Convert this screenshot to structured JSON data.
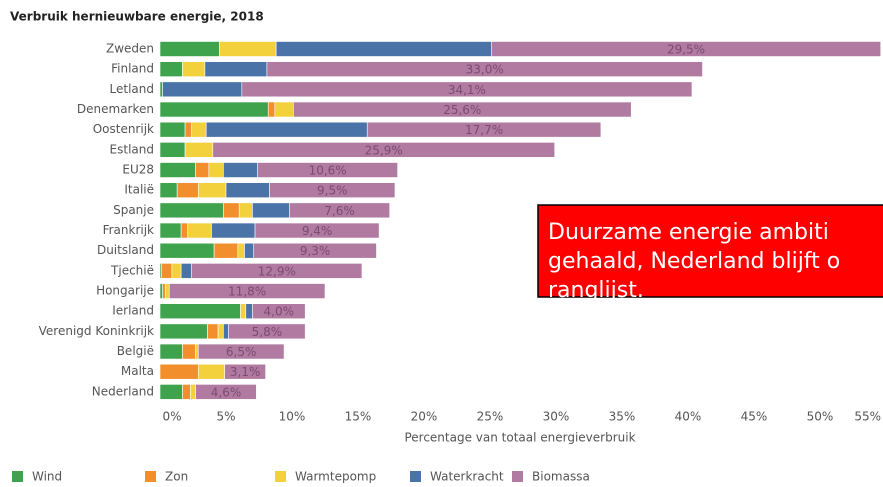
{
  "chart_data": {
    "type": "stacked_barh",
    "title": "Verbruik hernieuwbare energie, 2018",
    "x_label": "Percentage van totaal energieverbruik",
    "categories": [
      "Zweden",
      "Finland",
      "Letland",
      "Denemarken",
      "Oostenrijk",
      "Estland",
      "EU28",
      "Italië",
      "Spanje",
      "Frankrijk",
      "Duitsland",
      "Tjechië",
      "Hongarije",
      "Ierland",
      "Verenigd Koninkrijk",
      "België",
      "Malta",
      "Nederland"
    ],
    "series": [
      {
        "name": "Wind",
        "color": "#3fa34d",
        "values": [
          4.5,
          1.7,
          0.2,
          8.2,
          1.9,
          1.9,
          2.7,
          1.3,
          4.8,
          1.6,
          4.1,
          0.1,
          0.2,
          6.1,
          3.6,
          1.7,
          0,
          1.7
        ]
      },
      {
        "name": "Zon",
        "color": "#f28e2b",
        "values": [
          0,
          0,
          0,
          0.5,
          0.5,
          0,
          1.0,
          1.6,
          1.2,
          0.5,
          1.8,
          0.8,
          0.2,
          0,
          0.8,
          1.0,
          2.9,
          0.6
        ]
      },
      {
        "name": "Warmtepomp",
        "color": "#f3d13c",
        "values": [
          4.3,
          1.7,
          0,
          1.4,
          1.1,
          2.1,
          1.1,
          2.1,
          1.0,
          1.8,
          0.5,
          0.7,
          0.3,
          0.4,
          0.4,
          0.2,
          2.0,
          0.4
        ]
      },
      {
        "name": "Waterkracht",
        "color": "#4a73a8",
        "values": [
          16.3,
          4.7,
          6.0,
          0,
          12.2,
          0,
          2.6,
          3.3,
          2.8,
          3.3,
          0.7,
          0.8,
          0,
          0.5,
          0.4,
          0,
          0,
          0
        ]
      },
      {
        "name": "Biomassa",
        "color": "#b07aa1",
        "values": [
          29.5,
          33.0,
          34.1,
          25.6,
          17.7,
          25.9,
          10.6,
          9.5,
          7.6,
          9.4,
          9.3,
          12.9,
          11.8,
          4.0,
          5.8,
          6.5,
          3.1,
          4.6
        ],
        "value_labels": [
          "29,5%",
          "33,0%",
          "34,1%",
          "25,6%",
          "17,7%",
          "25,9%",
          "10,6%",
          "9,5%",
          "7,6%",
          "9,4%",
          "9,3%",
          "12,9%",
          "11,8%",
          "4,0%",
          "5,8%",
          "6,5%",
          "3,1%",
          "4,6%"
        ]
      }
    ],
    "xlim": [
      0,
      55
    ],
    "xticks": [
      {
        "value": 0,
        "label": "0%"
      },
      {
        "value": 5,
        "label": "5%"
      },
      {
        "value": 10,
        "label": "10%"
      },
      {
        "value": 15,
        "label": "15%"
      },
      {
        "value": 20,
        "label": "20%"
      },
      {
        "value": 25,
        "label": "25%"
      },
      {
        "value": 30,
        "label": "30%"
      },
      {
        "value": 35,
        "label": "35%"
      },
      {
        "value": 40,
        "label": "40%"
      },
      {
        "value": 45,
        "label": "45%"
      },
      {
        "value": 50,
        "label": "50%"
      },
      {
        "value": 55,
        "label": "55%"
      }
    ],
    "annotation": [
      "Duurzame energie ambiti",
      "gehaald, Nederland blijft o",
      "ranglijst."
    ]
  }
}
